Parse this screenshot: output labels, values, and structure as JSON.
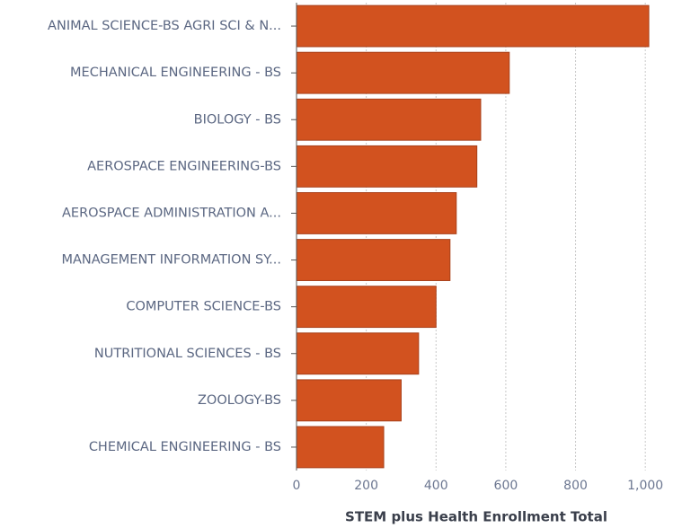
{
  "chart_data": {
    "type": "bar",
    "orientation": "horizontal",
    "x_label": "STEM plus Health Enrollment Total",
    "categories": [
      "ANIMAL SCIENCE-BS AGRI SCI & N...",
      "MECHANICAL ENGINEERING - BS",
      "BIOLOGY - BS",
      "AEROSPACE ENGINEERING-BS",
      "AEROSPACE ADMINISTRATION A...",
      "MANAGEMENT INFORMATION SY...",
      "COMPUTER SCIENCE-BS",
      "NUTRITIONAL SCIENCES - BS",
      "ZOOLOGY-BS",
      "CHEMICAL ENGINEERING - BS"
    ],
    "values": [
      1010,
      610,
      528,
      517,
      458,
      440,
      400,
      350,
      300,
      250
    ],
    "color": "#d2521f",
    "xlim": [
      0,
      1015
    ],
    "xticks": [
      0,
      200,
      400,
      600,
      800,
      {
        "value": 1000,
        "label": "1,000"
      }
    ],
    "grid": true
  }
}
